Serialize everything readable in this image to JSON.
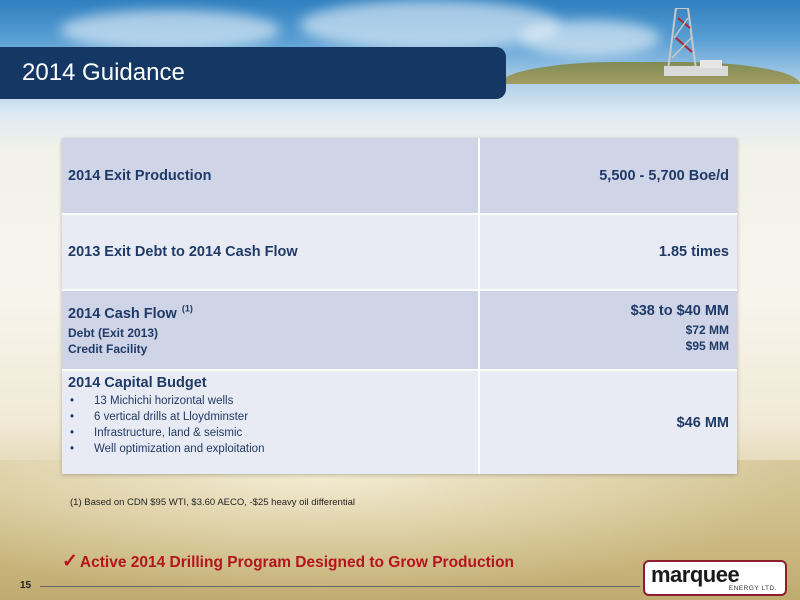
{
  "header": {
    "title": "2014 Guidance"
  },
  "table": {
    "row1": {
      "label": "2014 Exit Production",
      "value": "5,500 - 5,700 Boe/d"
    },
    "row2": {
      "label": "2013 Exit Debt to 2014 Cash Flow",
      "value": "1.85 times"
    },
    "row3": {
      "label": "2014 Cash Flow",
      "label_sup": "(1)",
      "value": "$38 to $40 MM",
      "sub1_label": "Debt (Exit 2013)",
      "sub1_value": "$72 MM",
      "sub2_label": "Credit Facility",
      "sub2_value": "$95 MM"
    },
    "row4": {
      "label": "2014 Capital Budget",
      "value": "$46 MM",
      "bullets": [
        "13 Michichi horizontal wells",
        "6 vertical drills at Lloydminster",
        "Infrastructure, land & seismic",
        "Well optimization and exploitation"
      ]
    }
  },
  "footnote": "(1)  Based on CDN $95 WTI, $3.60 AECO, -$25 heavy oil differential",
  "takeaway": {
    "check": "✓",
    "text": "Active 2014 Drilling Program Designed to Grow Production"
  },
  "footer": {
    "page_number": "15"
  },
  "logo": {
    "word": "marquee",
    "sub": "ENERGY LTD."
  },
  "colors": {
    "title_bar": "#143863",
    "table_text": "#1f3a67",
    "accent_red": "#b3141d"
  }
}
